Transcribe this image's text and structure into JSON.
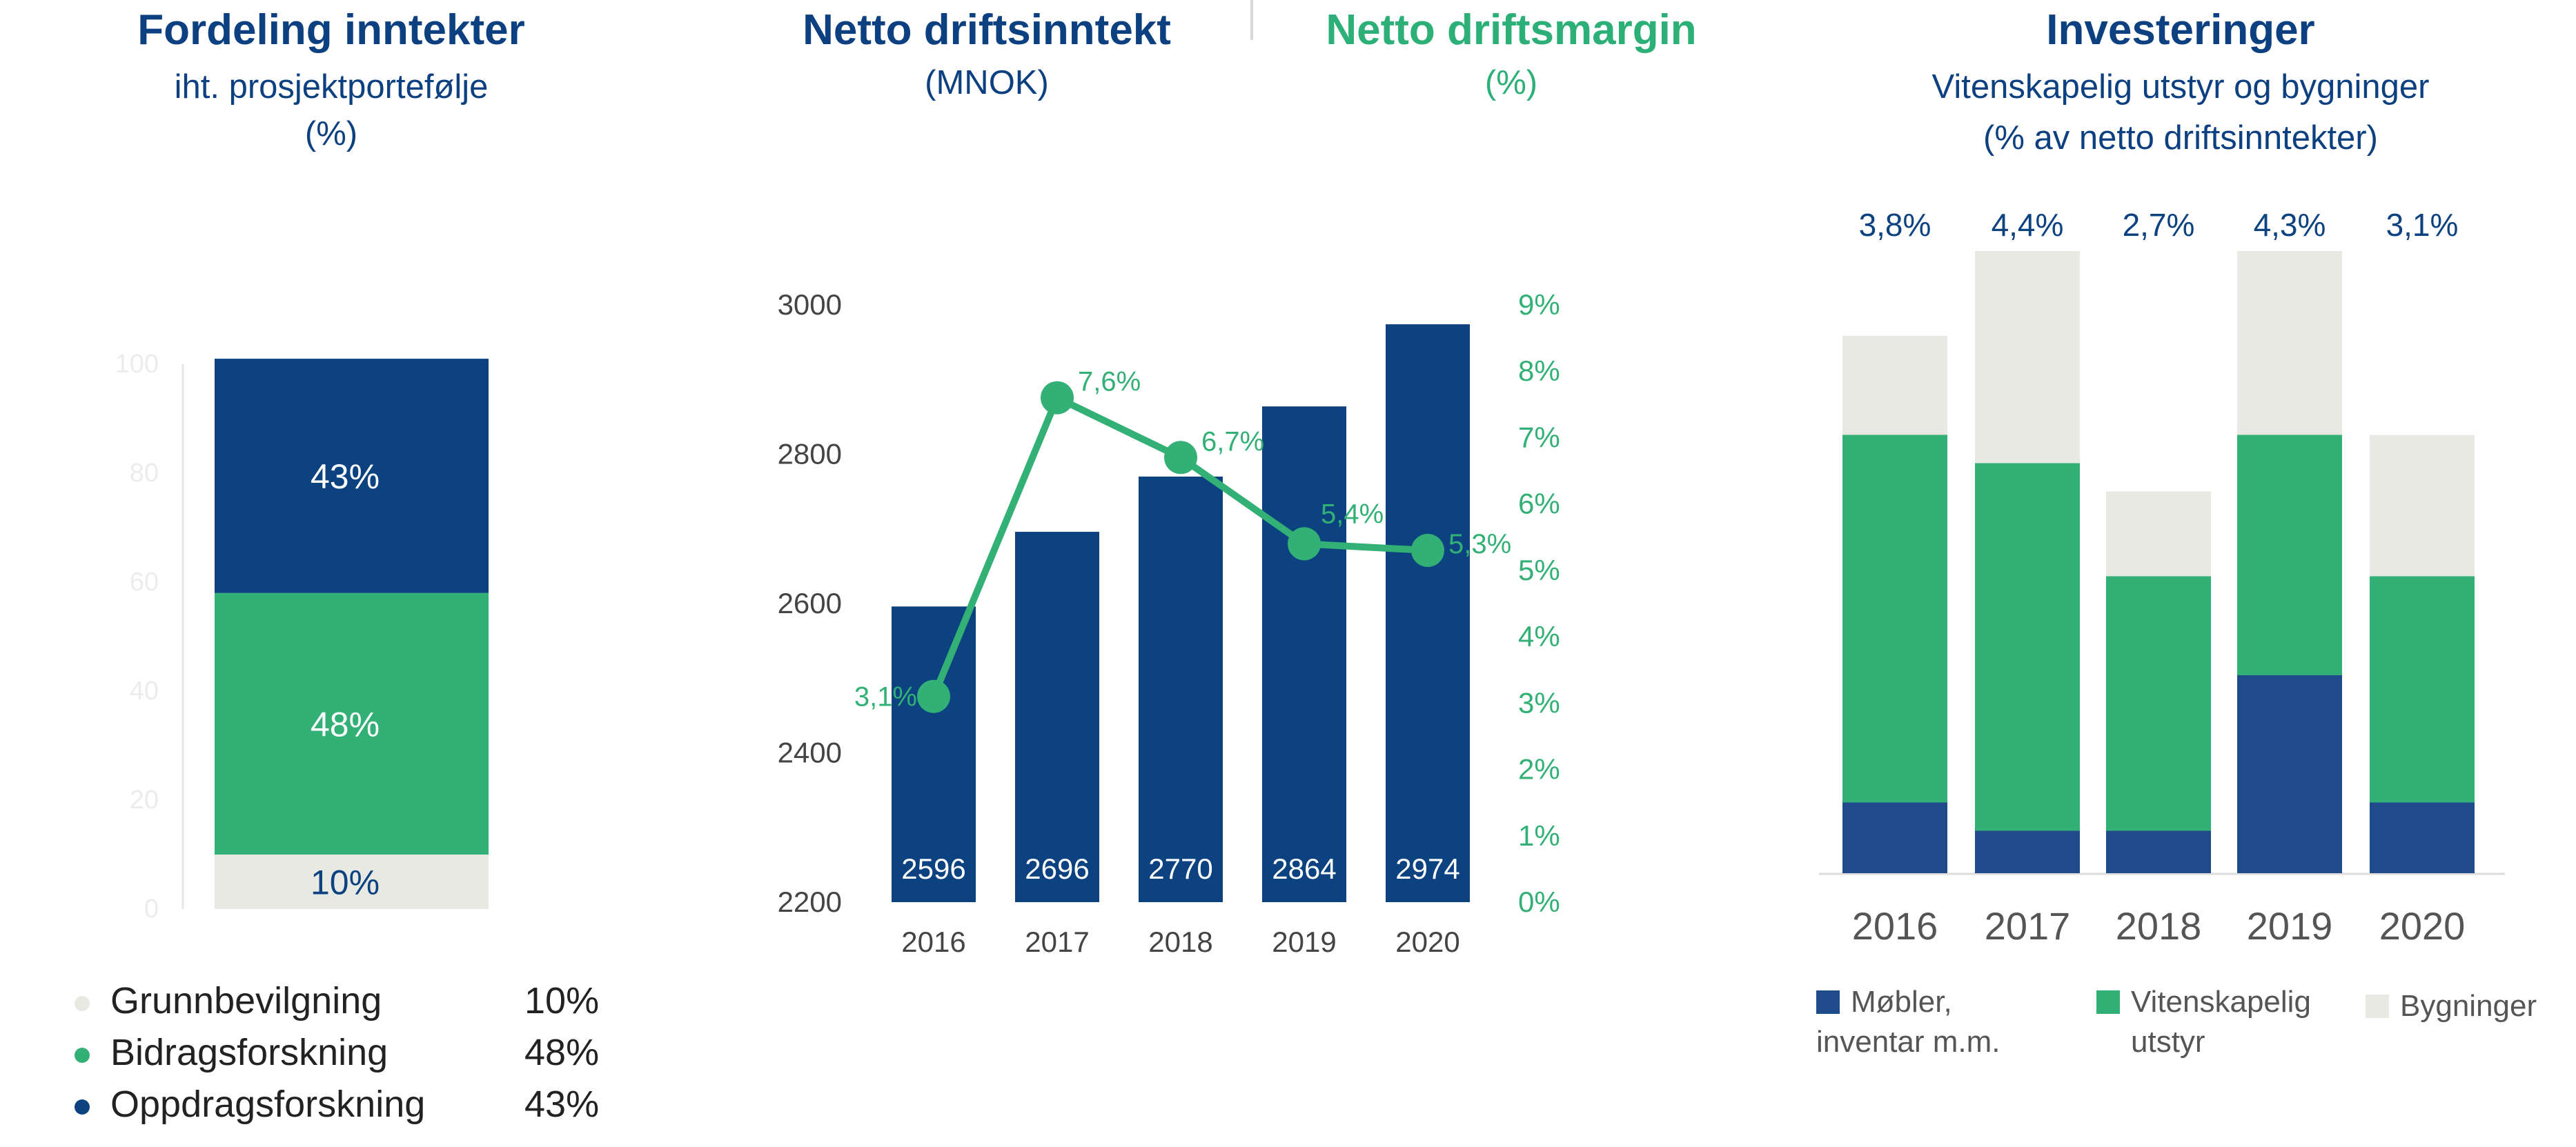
{
  "panel1": {
    "title": "Fordeling inntekter",
    "subtitle": "iht. prosjektportefølje",
    "unit": "(%)",
    "legend": [
      {
        "label": "Grunnbevilgning",
        "value": "10%",
        "color": "#e9e9e4"
      },
      {
        "label": "Bidragsforskning",
        "value": "48%",
        "color": "#33b075"
      },
      {
        "label": "Oppdragsforskning",
        "value": "43%",
        "color": "#0d4280"
      }
    ]
  },
  "panel2": {
    "title": "Netto driftsinntekt",
    "unit": "(MNOK)"
  },
  "panel3": {
    "title": "Netto driftsmargin",
    "unit": "(%)"
  },
  "panel4": {
    "title": "Investeringer",
    "subtitle": "Vitenskapelig utstyr og bygninger",
    "subtitle2": "(% av netto driftsinntekter)",
    "legend": [
      {
        "label_line1": "Møbler,",
        "label_line2": "inventar m.m.",
        "color": "#1f4b8c"
      },
      {
        "label_line1": "Vitenskapelig",
        "label_line2": "utstyr",
        "color": "#33b075"
      },
      {
        "label_line1": "Bygninger",
        "label_line2": "",
        "color": "#e9e9e4"
      }
    ]
  },
  "colors": {
    "navy": "#0d4280",
    "green": "#33b075",
    "light": "#e9e9e4",
    "axis": "#e6e6e6"
  },
  "chart_data": [
    {
      "type": "bar",
      "stacked": true,
      "title": "Fordeling inntekter",
      "subtitle": "iht. prosjektportefølje (%)",
      "ylim": [
        0,
        100
      ],
      "yticks": [
        0,
        20,
        40,
        60,
        80,
        100
      ],
      "categories": [
        ""
      ],
      "series": [
        {
          "name": "Grunnbevilgning",
          "values": [
            10
          ],
          "label": "10%"
        },
        {
          "name": "Bidragsforskning",
          "values": [
            48
          ],
          "label": "48%"
        },
        {
          "name": "Oppdragsforskning",
          "values": [
            43
          ],
          "label": "43%"
        }
      ]
    },
    {
      "type": "bar",
      "title": "Netto driftsinntekt (MNOK)",
      "categories": [
        "2016",
        "2017",
        "2018",
        "2019",
        "2020"
      ],
      "values": [
        2596,
        2696,
        2770,
        2864,
        2974
      ],
      "ylim": [
        2200,
        3000
      ],
      "yticks": [
        2200,
        2400,
        2600,
        2800,
        3000
      ],
      "secondary": {
        "type": "line",
        "title": "Netto driftsmargin (%)",
        "values": [
          3.1,
          7.6,
          6.7,
          5.4,
          5.3
        ],
        "labels": [
          "3,1%",
          "7,6%",
          "6,7%",
          "5,4%",
          "5,3%"
        ],
        "ylim": [
          0,
          9
        ],
        "yticks": [
          "0%",
          "1%",
          "2%",
          "3%",
          "4%",
          "5%",
          "6%",
          "7%",
          "8%",
          "9%"
        ]
      }
    },
    {
      "type": "bar",
      "stacked": true,
      "title": "Investeringer",
      "subtitle": "Vitenskapelig utstyr og bygninger (% av netto driftsinntekter)",
      "categories": [
        "2016",
        "2017",
        "2018",
        "2019",
        "2020"
      ],
      "totals": [
        "3,8%",
        "4,4%",
        "2,7%",
        "4,3%",
        "3,1%"
      ],
      "series": [
        {
          "name": "Møbler, inventar m.m.",
          "values": [
            0.5,
            0.3,
            0.3,
            1.4,
            0.5
          ]
        },
        {
          "name": "Vitenskapelig utstyr",
          "values": [
            2.6,
            2.6,
            1.8,
            1.7,
            1.6
          ]
        },
        {
          "name": "Bygninger",
          "values": [
            0.7,
            1.5,
            0.6,
            1.3,
            1.0
          ]
        }
      ]
    }
  ]
}
